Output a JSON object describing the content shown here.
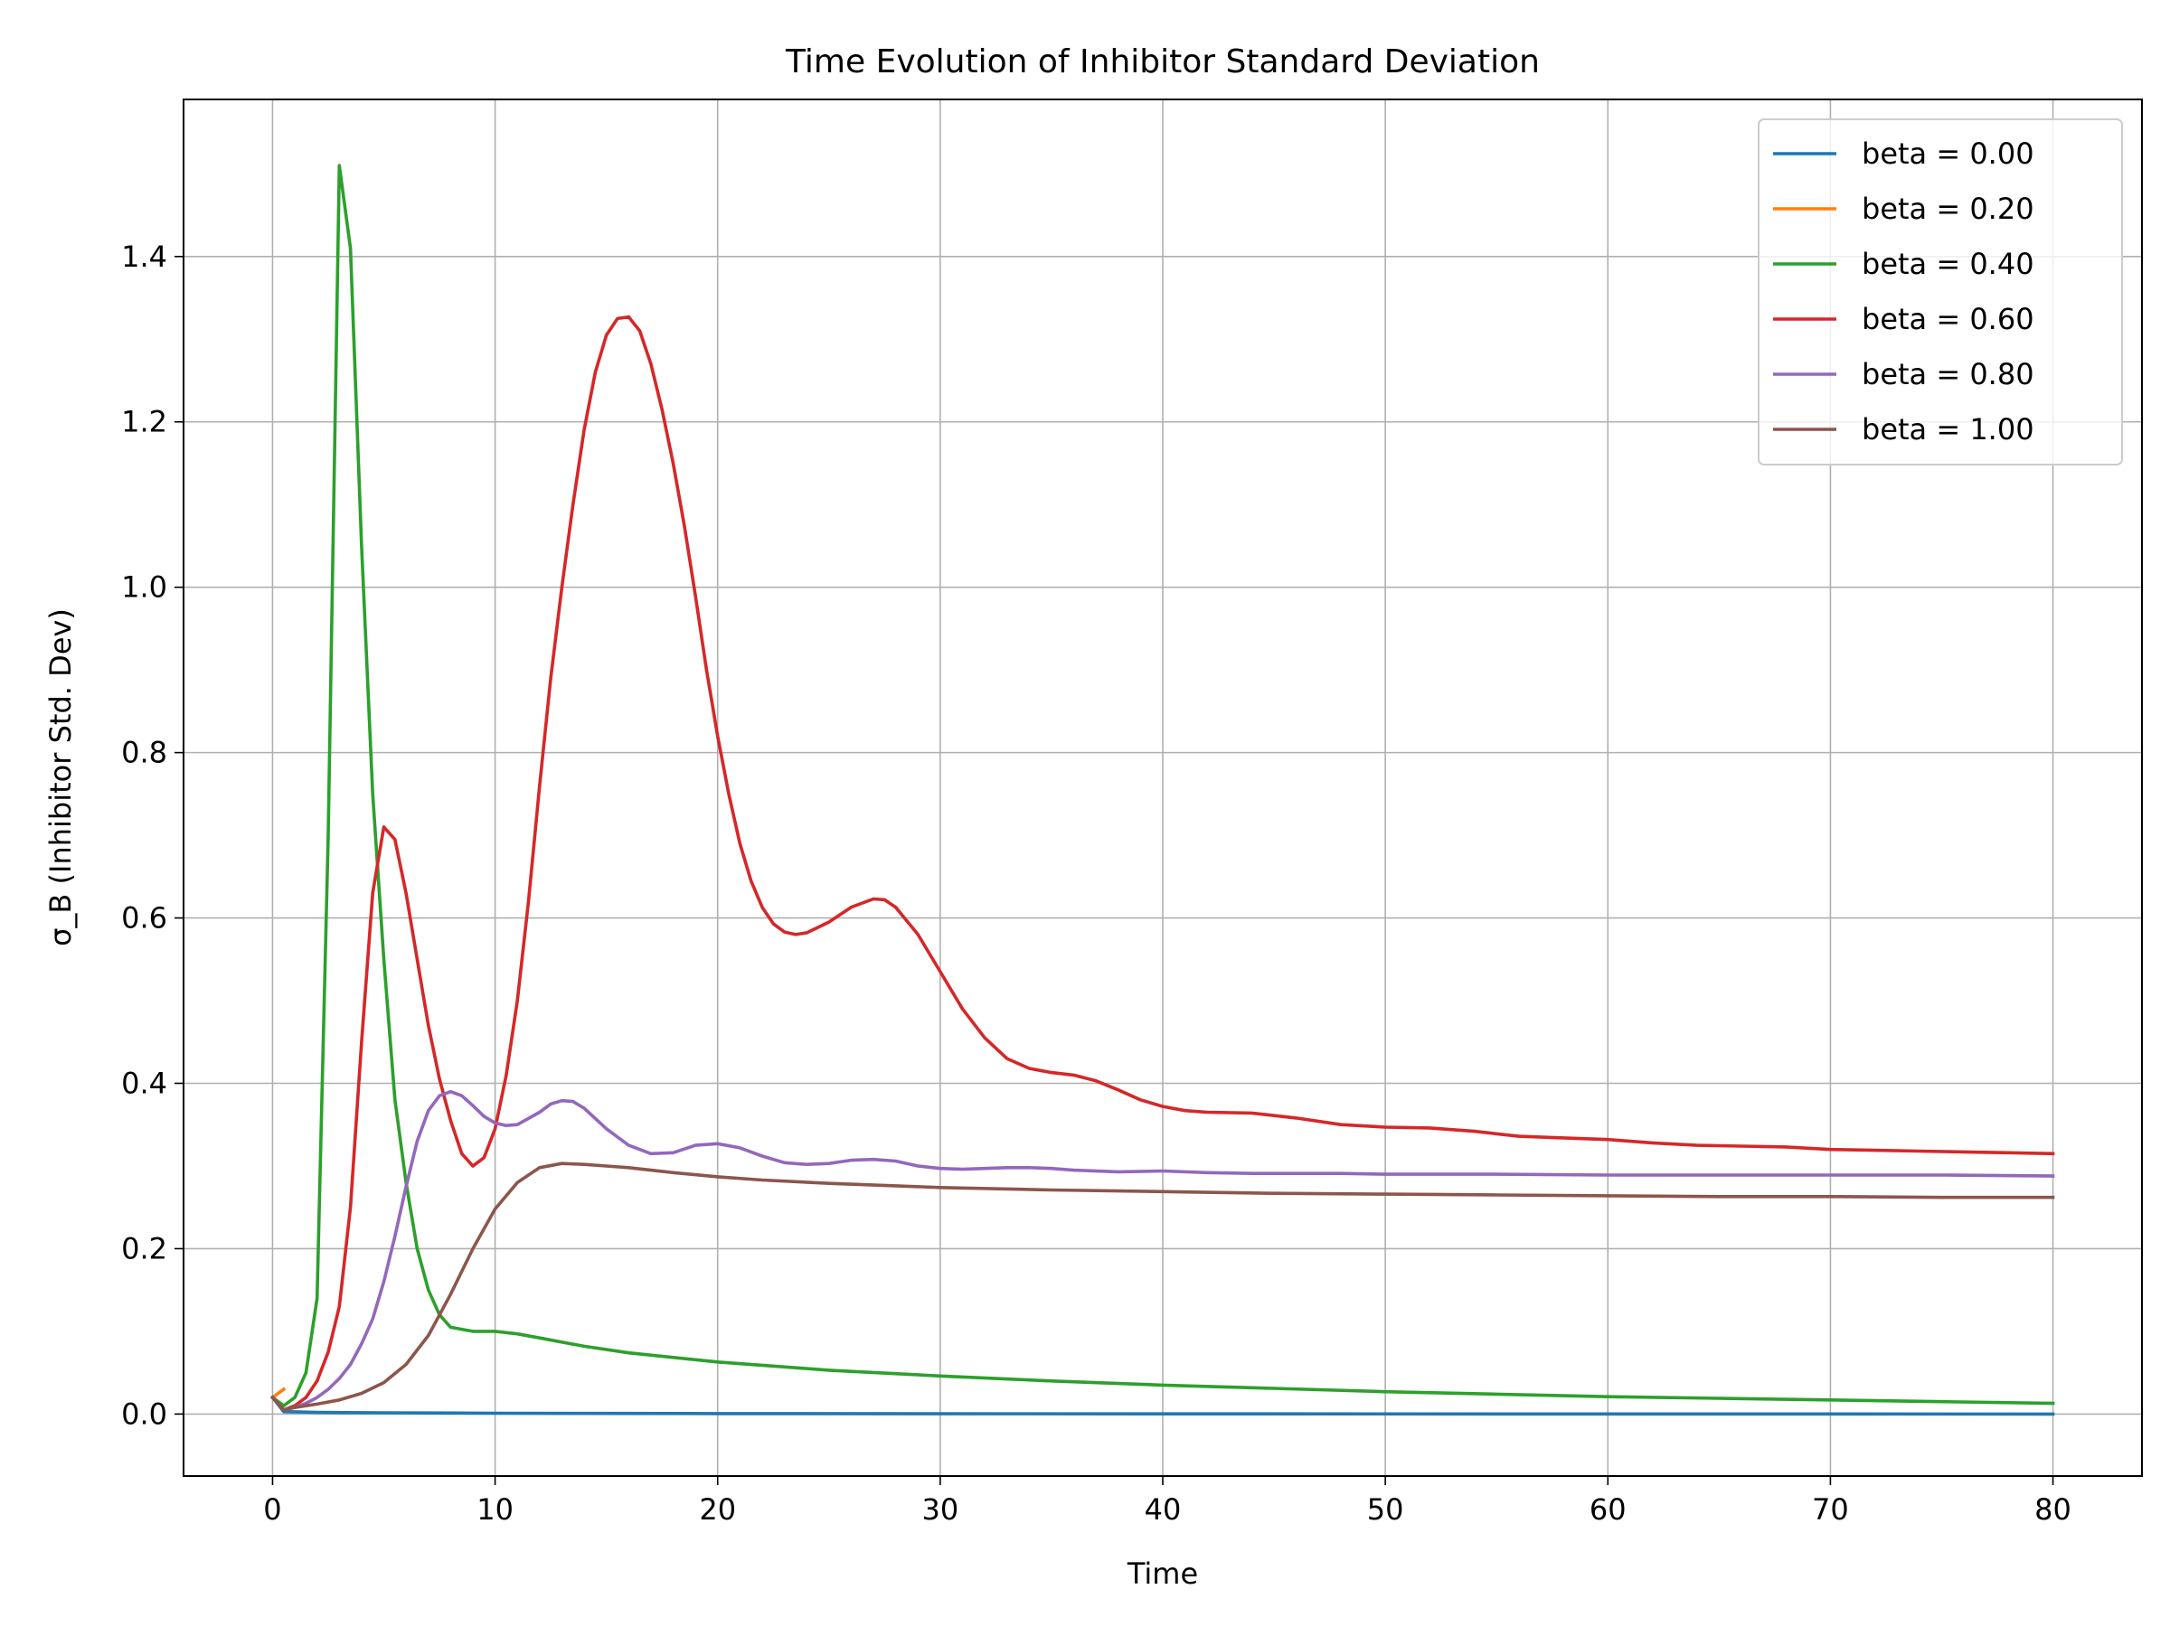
{
  "chart_data": {
    "type": "line",
    "title": "Time Evolution of Inhibitor Standard Deviation",
    "xlabel": "Time",
    "ylabel": "σ_B (Inhibitor Std. Dev)",
    "xlim": [
      -4,
      84
    ],
    "ylim": [
      -0.075,
      1.59
    ],
    "xticks": [
      0,
      10,
      20,
      30,
      40,
      50,
      60,
      70,
      80
    ],
    "yticks": [
      0.0,
      0.2,
      0.4,
      0.6,
      0.8,
      1.0,
      1.2,
      1.4
    ],
    "xtick_labels": [
      "0",
      "10",
      "20",
      "30",
      "40",
      "50",
      "60",
      "70",
      "80"
    ],
    "ytick_labels": [
      "0.0",
      "0.2",
      "0.4",
      "0.6",
      "0.8",
      "1.0",
      "1.2",
      "1.4"
    ],
    "grid": true,
    "legend_position": "top-right",
    "series": [
      {
        "name": "beta = 0.00",
        "color": "#1f77b4",
        "points": [
          [
            0,
            0.02
          ],
          [
            0.5,
            0.003
          ],
          [
            2,
            0.002
          ],
          [
            5,
            0.0015
          ],
          [
            10,
            0.001
          ],
          [
            20,
            0.0005
          ],
          [
            40,
            0.0002
          ],
          [
            80,
            0.0
          ]
        ]
      },
      {
        "name": "beta = 0.20",
        "color": "#ff7f0e",
        "points": [
          [
            0,
            0.02
          ],
          [
            0.5,
            0.03
          ]
        ]
      },
      {
        "name": "beta = 0.40",
        "color": "#2ca02c",
        "points": [
          [
            0,
            0.02
          ],
          [
            0.5,
            0.01
          ],
          [
            1,
            0.02
          ],
          [
            1.5,
            0.05
          ],
          [
            2,
            0.14
          ],
          [
            2.5,
            0.7
          ],
          [
            3,
            1.51
          ],
          [
            3.5,
            1.41
          ],
          [
            4,
            1.05
          ],
          [
            4.5,
            0.75
          ],
          [
            5,
            0.55
          ],
          [
            5.5,
            0.38
          ],
          [
            6,
            0.28
          ],
          [
            6.5,
            0.2
          ],
          [
            7,
            0.15
          ],
          [
            7.5,
            0.12
          ],
          [
            8,
            0.105
          ],
          [
            9,
            0.1
          ],
          [
            10,
            0.1
          ],
          [
            11,
            0.097
          ],
          [
            12,
            0.092
          ],
          [
            14,
            0.082
          ],
          [
            16,
            0.074
          ],
          [
            20,
            0.063
          ],
          [
            25,
            0.053
          ],
          [
            30,
            0.046
          ],
          [
            35,
            0.04
          ],
          [
            40,
            0.035
          ],
          [
            45,
            0.031
          ],
          [
            50,
            0.027
          ],
          [
            55,
            0.024
          ],
          [
            60,
            0.021
          ],
          [
            65,
            0.019
          ],
          [
            70,
            0.017
          ],
          [
            75,
            0.015
          ],
          [
            80,
            0.013
          ]
        ]
      },
      {
        "name": "beta = 0.60",
        "color": "#d62728",
        "points": [
          [
            0,
            0.02
          ],
          [
            0.5,
            0.005
          ],
          [
            1,
            0.01
          ],
          [
            1.5,
            0.02
          ],
          [
            2,
            0.04
          ],
          [
            2.5,
            0.075
          ],
          [
            3,
            0.13
          ],
          [
            3.5,
            0.25
          ],
          [
            4,
            0.45
          ],
          [
            4.5,
            0.63
          ],
          [
            5,
            0.71
          ],
          [
            5.5,
            0.695
          ],
          [
            6,
            0.63
          ],
          [
            6.5,
            0.55
          ],
          [
            7,
            0.47
          ],
          [
            7.5,
            0.405
          ],
          [
            8,
            0.355
          ],
          [
            8.5,
            0.315
          ],
          [
            9,
            0.3
          ],
          [
            9.5,
            0.31
          ],
          [
            10,
            0.345
          ],
          [
            10.5,
            0.41
          ],
          [
            11,
            0.5
          ],
          [
            11.5,
            0.62
          ],
          [
            12,
            0.76
          ],
          [
            12.5,
            0.89
          ],
          [
            13,
            1.0
          ],
          [
            13.5,
            1.1
          ],
          [
            14,
            1.19
          ],
          [
            14.5,
            1.26
          ],
          [
            15,
            1.305
          ],
          [
            15.5,
            1.325
          ],
          [
            16,
            1.327
          ],
          [
            16.5,
            1.31
          ],
          [
            17,
            1.27
          ],
          [
            17.5,
            1.215
          ],
          [
            18,
            1.15
          ],
          [
            18.5,
            1.075
          ],
          [
            19,
            0.99
          ],
          [
            19.5,
            0.9
          ],
          [
            20,
            0.82
          ],
          [
            20.5,
            0.75
          ],
          [
            21,
            0.69
          ],
          [
            21.5,
            0.645
          ],
          [
            22,
            0.613
          ],
          [
            22.5,
            0.593
          ],
          [
            23,
            0.583
          ],
          [
            23.5,
            0.58
          ],
          [
            24,
            0.582
          ],
          [
            25,
            0.595
          ],
          [
            26,
            0.613
          ],
          [
            27,
            0.623
          ],
          [
            27.5,
            0.622
          ],
          [
            28,
            0.613
          ],
          [
            29,
            0.58
          ],
          [
            30,
            0.535
          ],
          [
            31,
            0.49
          ],
          [
            32,
            0.455
          ],
          [
            33,
            0.43
          ],
          [
            34,
            0.418
          ],
          [
            35,
            0.413
          ],
          [
            36,
            0.41
          ],
          [
            37,
            0.403
          ],
          [
            38,
            0.392
          ],
          [
            39,
            0.38
          ],
          [
            40,
            0.372
          ],
          [
            41,
            0.367
          ],
          [
            42,
            0.365
          ],
          [
            44,
            0.364
          ],
          [
            46,
            0.358
          ],
          [
            48,
            0.35
          ],
          [
            50,
            0.347
          ],
          [
            52,
            0.346
          ],
          [
            54,
            0.342
          ],
          [
            56,
            0.336
          ],
          [
            58,
            0.334
          ],
          [
            60,
            0.332
          ],
          [
            62,
            0.328
          ],
          [
            64,
            0.325
          ],
          [
            66,
            0.324
          ],
          [
            68,
            0.323
          ],
          [
            70,
            0.32
          ],
          [
            72,
            0.319
          ],
          [
            74,
            0.318
          ],
          [
            76,
            0.317
          ],
          [
            78,
            0.316
          ],
          [
            80,
            0.315
          ]
        ]
      },
      {
        "name": "beta = 0.80",
        "color": "#9467bd",
        "points": [
          [
            0,
            0.02
          ],
          [
            0.5,
            0.005
          ],
          [
            1,
            0.008
          ],
          [
            1.5,
            0.013
          ],
          [
            2,
            0.02
          ],
          [
            2.5,
            0.03
          ],
          [
            3,
            0.043
          ],
          [
            3.5,
            0.06
          ],
          [
            4,
            0.085
          ],
          [
            4.5,
            0.115
          ],
          [
            5,
            0.16
          ],
          [
            5.5,
            0.215
          ],
          [
            6,
            0.275
          ],
          [
            6.5,
            0.33
          ],
          [
            7,
            0.367
          ],
          [
            7.5,
            0.385
          ],
          [
            8,
            0.39
          ],
          [
            8.5,
            0.385
          ],
          [
            9,
            0.373
          ],
          [
            9.5,
            0.36
          ],
          [
            10,
            0.352
          ],
          [
            10.5,
            0.349
          ],
          [
            11,
            0.35
          ],
          [
            12,
            0.365
          ],
          [
            12.5,
            0.375
          ],
          [
            13,
            0.379
          ],
          [
            13.5,
            0.378
          ],
          [
            14,
            0.37
          ],
          [
            15,
            0.345
          ],
          [
            16,
            0.325
          ],
          [
            17,
            0.315
          ],
          [
            18,
            0.316
          ],
          [
            19,
            0.325
          ],
          [
            20,
            0.327
          ],
          [
            21,
            0.322
          ],
          [
            22,
            0.312
          ],
          [
            23,
            0.304
          ],
          [
            24,
            0.302
          ],
          [
            25,
            0.303
          ],
          [
            26,
            0.307
          ],
          [
            27,
            0.308
          ],
          [
            28,
            0.306
          ],
          [
            29,
            0.3
          ],
          [
            30,
            0.297
          ],
          [
            31,
            0.296
          ],
          [
            32,
            0.297
          ],
          [
            33,
            0.298
          ],
          [
            34,
            0.298
          ],
          [
            35,
            0.297
          ],
          [
            36,
            0.295
          ],
          [
            38,
            0.293
          ],
          [
            40,
            0.294
          ],
          [
            42,
            0.292
          ],
          [
            44,
            0.291
          ],
          [
            46,
            0.291
          ],
          [
            48,
            0.291
          ],
          [
            50,
            0.29
          ],
          [
            55,
            0.29
          ],
          [
            60,
            0.289
          ],
          [
            65,
            0.289
          ],
          [
            70,
            0.289
          ],
          [
            75,
            0.289
          ],
          [
            80,
            0.288
          ]
        ]
      },
      {
        "name": "beta = 1.00",
        "color": "#8c564b",
        "points": [
          [
            0,
            0.02
          ],
          [
            0.5,
            0.005
          ],
          [
            1,
            0.008
          ],
          [
            2,
            0.012
          ],
          [
            3,
            0.017
          ],
          [
            4,
            0.025
          ],
          [
            5,
            0.038
          ],
          [
            6,
            0.06
          ],
          [
            7,
            0.095
          ],
          [
            8,
            0.145
          ],
          [
            9,
            0.2
          ],
          [
            10,
            0.248
          ],
          [
            11,
            0.28
          ],
          [
            12,
            0.298
          ],
          [
            13,
            0.303
          ],
          [
            14,
            0.302
          ],
          [
            15,
            0.3
          ],
          [
            16,
            0.298
          ],
          [
            18,
            0.292
          ],
          [
            20,
            0.287
          ],
          [
            22,
            0.283
          ],
          [
            25,
            0.279
          ],
          [
            28,
            0.276
          ],
          [
            30,
            0.274
          ],
          [
            35,
            0.271
          ],
          [
            40,
            0.269
          ],
          [
            45,
            0.267
          ],
          [
            50,
            0.266
          ],
          [
            55,
            0.265
          ],
          [
            60,
            0.264
          ],
          [
            65,
            0.263
          ],
          [
            70,
            0.263
          ],
          [
            75,
            0.262
          ],
          [
            80,
            0.262
          ]
        ]
      }
    ]
  }
}
